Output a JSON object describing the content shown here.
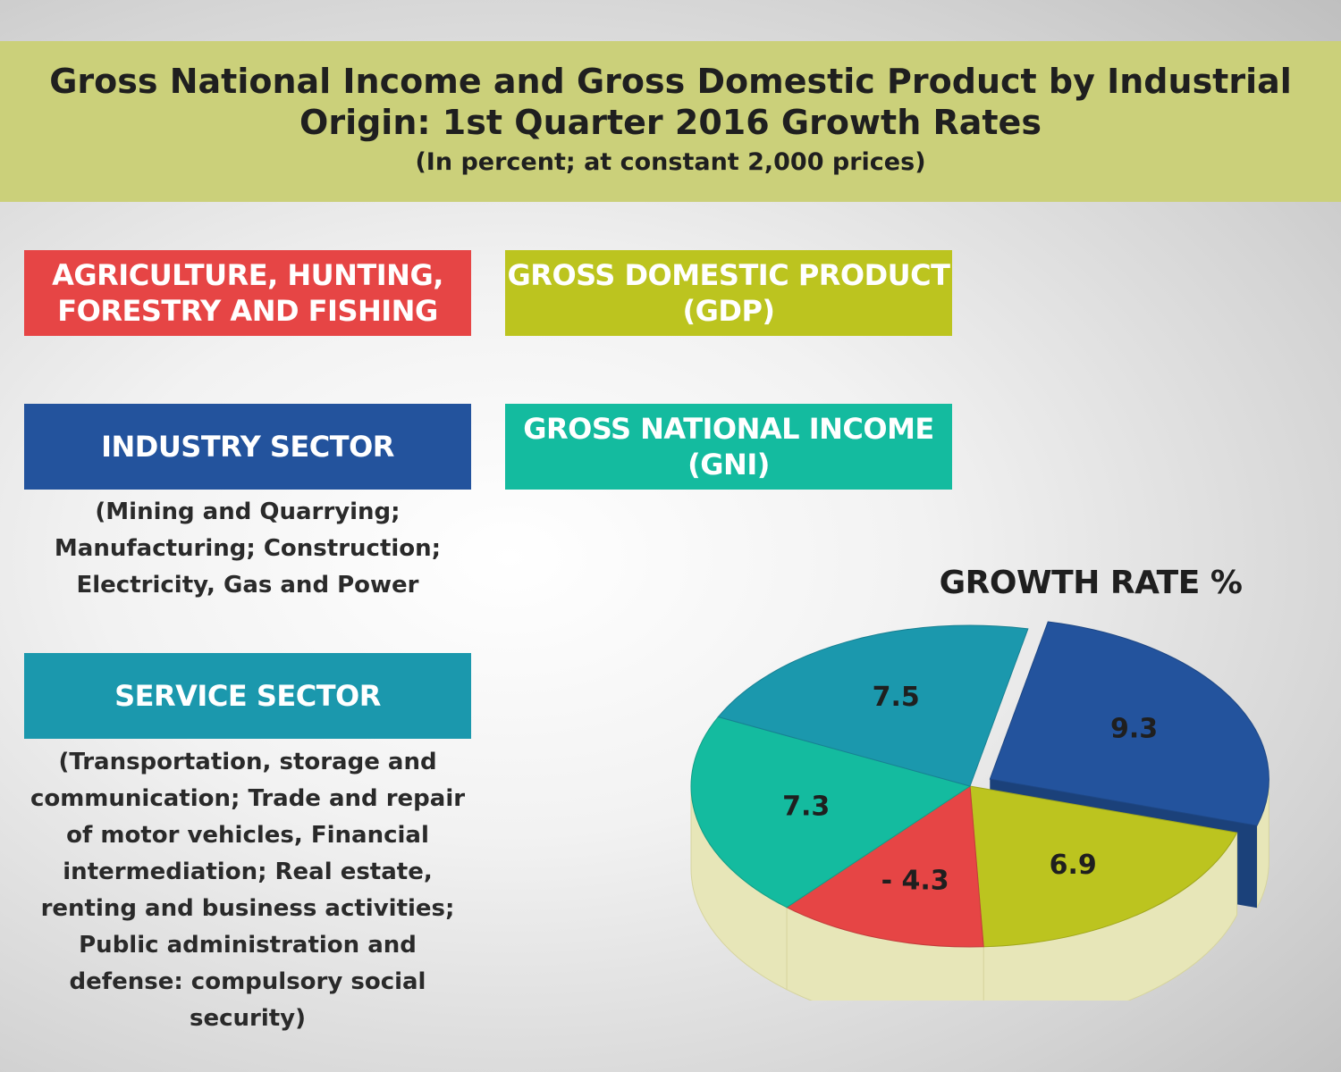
{
  "header": {
    "title": "Gross National Income and Gross Domestic Product by Industrial Origin: 1st Quarter 2016 Growth Rates",
    "subtitle": "(In percent; at constant 2,000 prices)"
  },
  "legend": {
    "agriculture": {
      "label": "AGRICULTURE, HUNTING, FORESTRY AND FISHING",
      "color": "#e64545"
    },
    "gdp": {
      "label": "GROSS DOMESTIC PRODUCT (GDP)",
      "color": "#bcc41f"
    },
    "industry": {
      "label": "INDUSTRY SECTOR",
      "color": "#23539d",
      "description": "(Mining and Quarrying; Manufacturing; Construction; Electricity, Gas and Power"
    },
    "gni": {
      "label": "GROSS NATIONAL INCOME (GNI)",
      "color": "#14bb9f"
    },
    "service": {
      "label": "SERVICE SECTOR",
      "color": "#1b98ad",
      "description": "(Transportation, storage and communication; Trade and repair of motor vehicles, Financial intermediation; Real estate, renting and business activities; Public administration and defense: compulsory social security)"
    }
  },
  "chart_data": {
    "type": "pie",
    "title": "GROWTH RATE %",
    "slices": [
      {
        "category": "INDUSTRY SECTOR",
        "value": 9.3,
        "label": "9.3",
        "color": "#23539d"
      },
      {
        "category": "GROSS DOMESTIC PRODUCT (GDP)",
        "value": 6.9,
        "label": "6.9",
        "color": "#bcc41f"
      },
      {
        "category": "AGRICULTURE, HUNTING, FORESTRY AND FISHING",
        "value": -4.3,
        "label": "- 4.3",
        "color": "#e64545"
      },
      {
        "category": "GROSS NATIONAL INCOME (GNI)",
        "value": 7.3,
        "label": "7.3",
        "color": "#14bb9f"
      },
      {
        "category": "SERVICE SECTOR",
        "value": 7.5,
        "label": "7.5",
        "color": "#1b98ad"
      }
    ]
  }
}
